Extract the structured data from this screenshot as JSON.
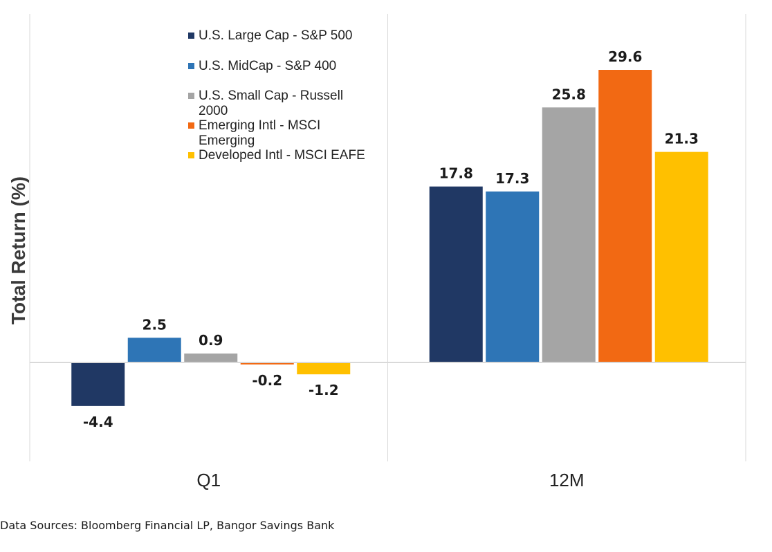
{
  "chart_data": {
    "type": "bar",
    "title": "",
    "xlabel": "",
    "ylabel": "Total Return (%)",
    "categories": [
      "Q1",
      "12M"
    ],
    "series": [
      {
        "name": "U.S. Large Cap - S&P 500",
        "color": "#203864",
        "values": [
          -4.4,
          17.8
        ],
        "labels": [
          "-4.4",
          "17.8"
        ]
      },
      {
        "name": "U.S. MidCap - S&P 400",
        "color": "#2E75B6",
        "values": [
          2.5,
          17.3
        ],
        "labels": [
          "2.5",
          "17.3"
        ]
      },
      {
        "name": "U.S. Small Cap - Russell 2000",
        "color": "#A5A5A5",
        "values": [
          0.9,
          25.8
        ],
        "labels": [
          "0.9",
          "25.8"
        ]
      },
      {
        "name": "Emerging Intl - MSCI Emerging",
        "color": "#F26913",
        "values": [
          -0.2,
          29.6
        ],
        "labels": [
          "-0.2",
          "29.6"
        ]
      },
      {
        "name": "Developed Intl - MSCI EAFE",
        "color": "#FFC000",
        "values": [
          -1.2,
          21.3
        ],
        "labels": [
          "-1.2",
          "21.3"
        ]
      }
    ],
    "ylim": [
      -10,
      35
    ],
    "grid": false,
    "legend_position": "top-left"
  },
  "legend": {
    "lines": [
      [
        "U.S. Large Cap - S&P 500"
      ],
      [
        "U.S. MidCap - S&P 400"
      ],
      [
        "U.S. Small Cap - Russell",
        "2000"
      ],
      [
        "Emerging Intl - MSCI",
        "Emerging"
      ],
      [
        "Developed Intl - MSCI EAFE"
      ]
    ]
  },
  "source_note": "Data Sources: Bloomberg Financial LP, Bangor Savings Bank"
}
